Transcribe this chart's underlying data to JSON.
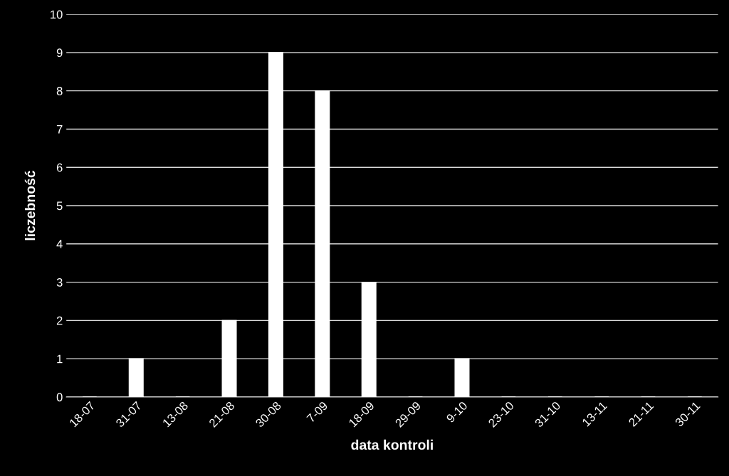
{
  "chart_data": {
    "type": "bar",
    "xlabel": "data kontroli",
    "ylabel": "liczebność",
    "categories": [
      "18-07",
      "31-07",
      "13-08",
      "21-08",
      "30-08",
      "7-09",
      "18-09",
      "29-09",
      "9-10",
      "23-10",
      "31-10",
      "13-11",
      "21-11",
      "30-11"
    ],
    "values": [
      0,
      1,
      0,
      2,
      9,
      8,
      3,
      0,
      1,
      0,
      0,
      0,
      0,
      0
    ],
    "color": "#ffffff",
    "ylim": [
      0,
      10
    ],
    "yticks": [
      0,
      1,
      2,
      3,
      4,
      5,
      6,
      7,
      8,
      9,
      10
    ],
    "grid": "y",
    "legend": false
  }
}
